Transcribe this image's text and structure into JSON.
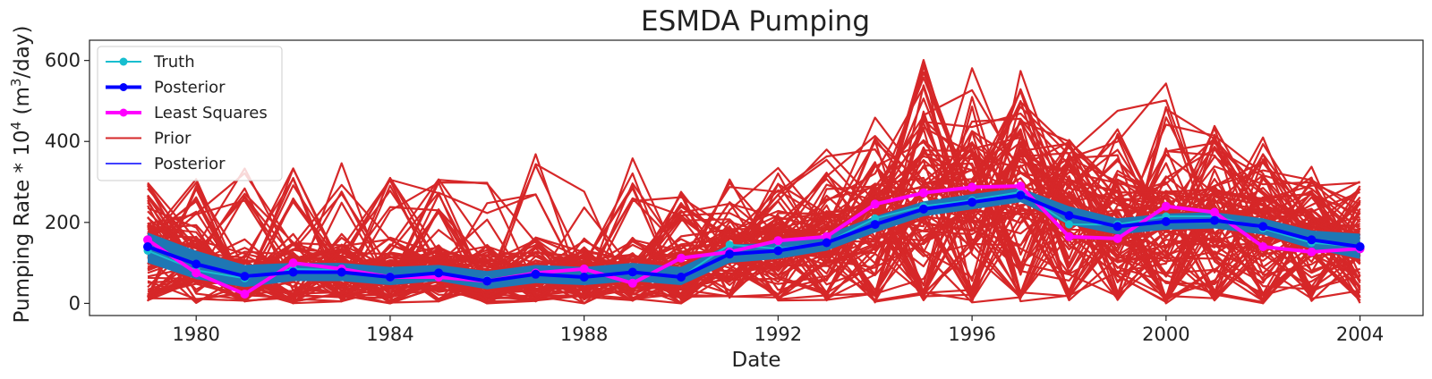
{
  "chart_data": {
    "type": "line",
    "title": "ESMDA Pumping",
    "xlabel": "Date",
    "ylabel_prefix": "Pumping Rate * 10",
    "ylabel_exp": "4",
    "ylabel_unit_open": " (m",
    "ylabel_unit_exp": "3",
    "ylabel_unit_close": "/day)",
    "xlim": [
      1977.8,
      2005.3
    ],
    "ylim": [
      -30,
      650
    ],
    "xticks": [
      1980,
      1984,
      1988,
      1992,
      1996,
      2000,
      2004
    ],
    "xtick_labels": [
      "1980",
      "1984",
      "1988",
      "1992",
      "1996",
      "2000",
      "2004"
    ],
    "yticks": [
      0,
      200,
      400,
      600
    ],
    "ytick_labels": [
      "0",
      "200",
      "400",
      "600"
    ],
    "grid": false,
    "legend_position": "top-left",
    "x": [
      1979,
      1980,
      1981,
      1982,
      1983,
      1984,
      1985,
      1986,
      1987,
      1988,
      1989,
      1990,
      1991,
      1992,
      1993,
      1994,
      1995,
      1996,
      1997,
      1998,
      1999,
      2000,
      2001,
      2002,
      2003,
      2004
    ],
    "series": [
      {
        "name": "Truth",
        "color": "#17becf",
        "style": "line-marker",
        "values": [
          130,
          82,
          62,
          85,
          82,
          67,
          75,
          58,
          72,
          65,
          75,
          65,
          145,
          135,
          150,
          210,
          240,
          255,
          275,
          195,
          195,
          215,
          215,
          185,
          150,
          140
        ]
      },
      {
        "name": "Posterior",
        "color": "#0000ff",
        "style": "thick-line-marker",
        "values": [
          140,
          97,
          67,
          77,
          77,
          65,
          75,
          55,
          72,
          65,
          77,
          65,
          122,
          130,
          150,
          195,
          233,
          250,
          267,
          217,
          190,
          202,
          205,
          190,
          157,
          140
        ]
      },
      {
        "name": "Least Squares",
        "color": "#ff00ff",
        "style": "thick-line-marker",
        "values": [
          157,
          75,
          23,
          100,
          85,
          65,
          65,
          55,
          75,
          85,
          50,
          112,
          127,
          155,
          165,
          245,
          273,
          287,
          290,
          165,
          160,
          240,
          225,
          140,
          127,
          135
        ]
      },
      {
        "name": "Prior",
        "color": "#d62728",
        "style": "ensemble-lines",
        "seed_band_low": [
          5,
          0,
          5,
          0,
          5,
          0,
          5,
          0,
          5,
          0,
          5,
          0,
          5,
          0,
          5,
          0,
          5,
          0,
          5,
          0,
          5,
          0,
          5,
          0,
          5,
          0
        ],
        "seed_band_high": [
          320,
          310,
          380,
          340,
          350,
          330,
          330,
          300,
          370,
          290,
          360,
          290,
          330,
          340,
          380,
          500,
          610,
          625,
          585,
          420,
          490,
          565,
          470,
          420,
          340,
          315
        ]
      },
      {
        "name": "Posterior",
        "color": "#0000ff",
        "style": "thin-line",
        "band_color": "#1f77b4",
        "band_low": [
          100,
          60,
          40,
          55,
          55,
          45,
          55,
          35,
          50,
          45,
          55,
          45,
          100,
          110,
          130,
          175,
          215,
          232,
          250,
          195,
          170,
          182,
          185,
          170,
          135,
          110
        ],
        "band_high": [
          175,
          130,
          95,
          100,
          100,
          90,
          95,
          80,
          95,
          90,
          100,
          90,
          145,
          150,
          170,
          215,
          252,
          270,
          285,
          240,
          210,
          222,
          225,
          210,
          180,
          172
        ]
      }
    ]
  }
}
